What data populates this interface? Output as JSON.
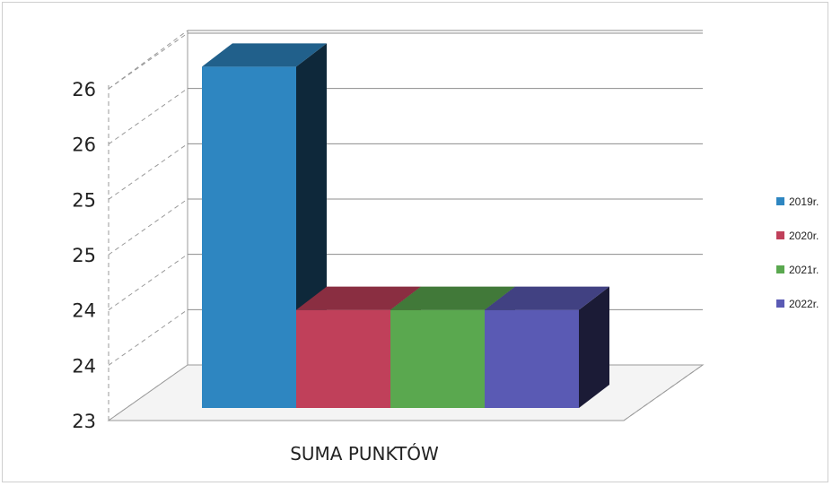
{
  "chart_data": {
    "type": "bar",
    "categories": [
      "SUMA PUNKTÓW"
    ],
    "series": [
      {
        "name": "2019r.",
        "values": [
          26.2
        ],
        "color": "#2e86c1"
      },
      {
        "name": "2020r.",
        "values": [
          24.0
        ],
        "color": "#c0405a"
      },
      {
        "name": "2021r.",
        "values": [
          24.0
        ],
        "color": "#5aa84f"
      },
      {
        "name": "2022r.",
        "values": [
          24.0
        ],
        "color": "#5a5ab4"
      }
    ],
    "y_ticks": [
      "23",
      "24",
      "24",
      "25",
      "25",
      "26",
      "26"
    ],
    "ylim": [
      23,
      26.5
    ],
    "grid": true,
    "legend": "right",
    "style": "3d-clustered-column"
  }
}
